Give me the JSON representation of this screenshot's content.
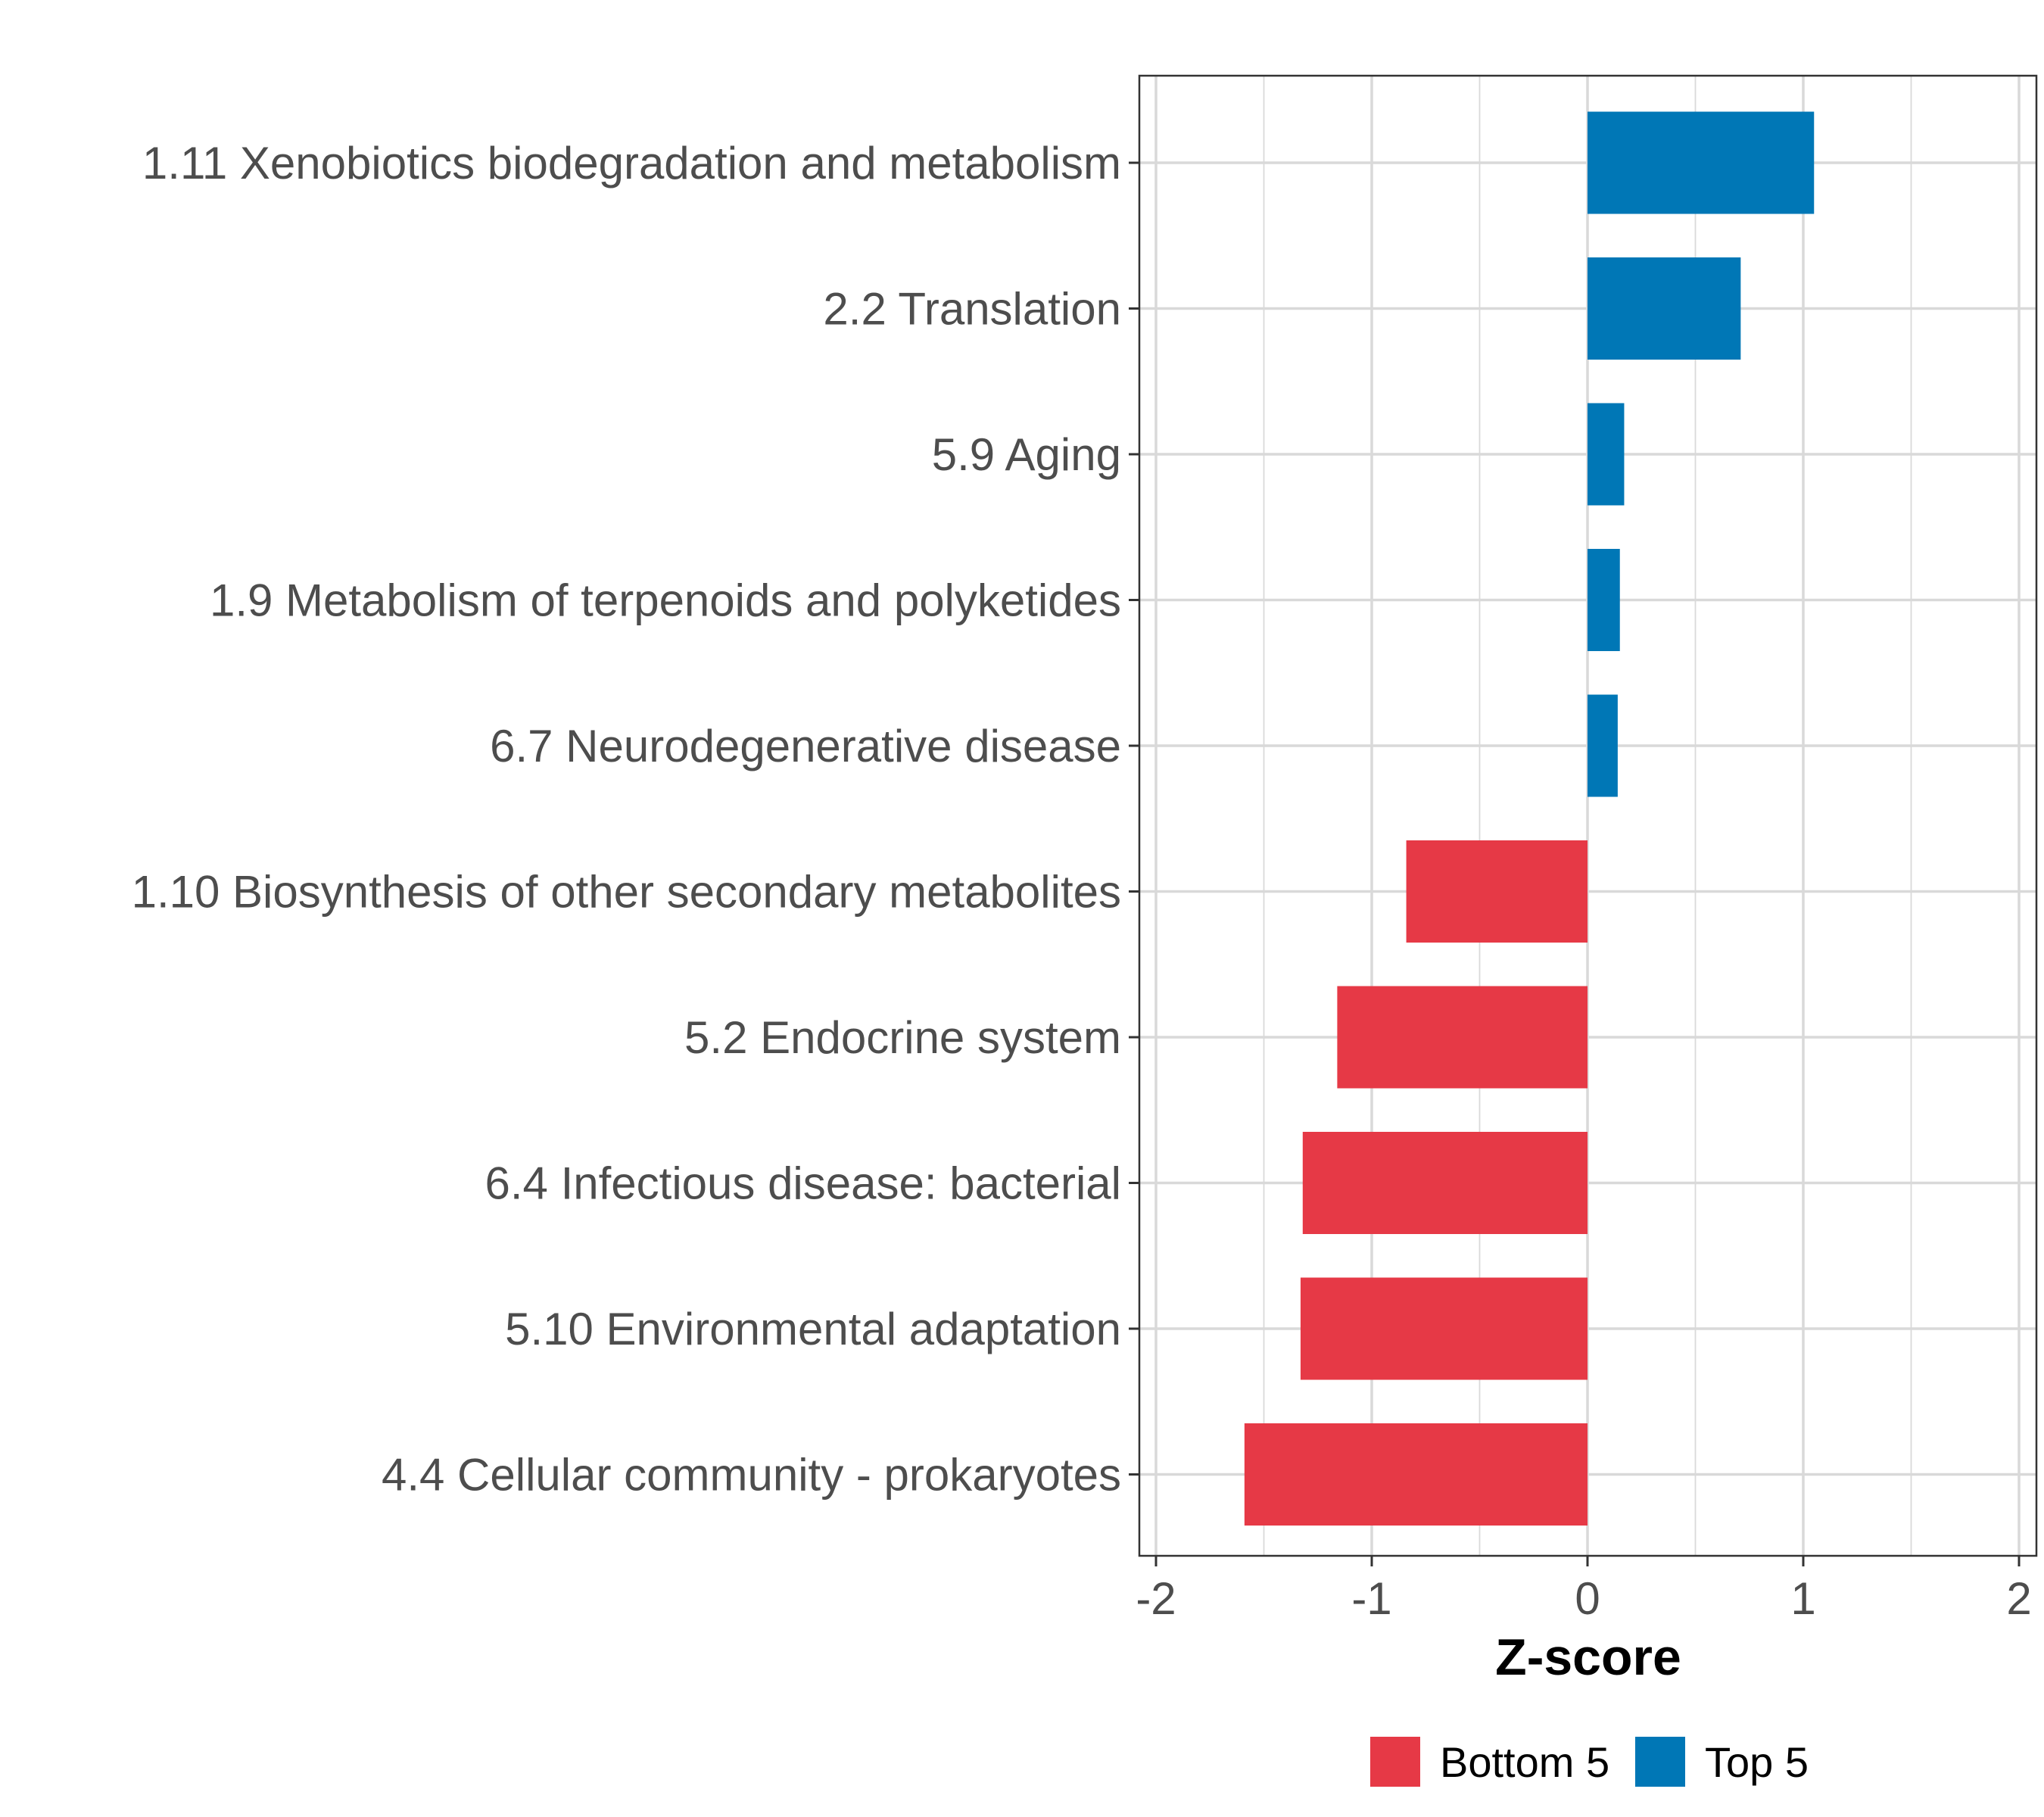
{
  "chart_data": {
    "type": "bar",
    "orientation": "horizontal",
    "categories": [
      "1.11 Xenobiotics biodegradation and metabolism",
      "2.2 Translation",
      "5.9 Aging",
      "1.9 Metabolism of terpenoids and polyketides",
      "6.7 Neurodegenerative disease",
      "1.10 Biosynthesis of other secondary metabolites",
      "5.2 Endocrine system",
      "6.4 Infectious disease: bacterial",
      "5.10 Environmental adaptation",
      "4.4 Cellular community - prokaryotes"
    ],
    "values": [
      1.05,
      0.71,
      0.17,
      0.15,
      0.14,
      -0.84,
      -1.16,
      -1.32,
      -1.33,
      -1.59
    ],
    "groups": [
      "Top 5",
      "Top 5",
      "Top 5",
      "Top 5",
      "Top 5",
      "Bottom 5",
      "Bottom 5",
      "Bottom 5",
      "Bottom 5",
      "Bottom 5"
    ],
    "title": "",
    "xlabel": "Z-score",
    "ylabel": "",
    "xlim": [
      -2,
      2
    ],
    "xticks": [
      -2,
      -1,
      0,
      1,
      2
    ],
    "xtick_labels": [
      "-2",
      "-1",
      "0",
      "1",
      "2"
    ],
    "grid": true,
    "legend": {
      "placement": "bottom",
      "entries": [
        {
          "label": "Bottom 5",
          "color": "#e63946"
        },
        {
          "label": "Top 5",
          "color": "#0077b6"
        }
      ]
    },
    "colors": {
      "Top 5": "#0077b6",
      "Bottom 5": "#e63946",
      "grid": "#d9d9d9",
      "axis": "#333333"
    }
  }
}
